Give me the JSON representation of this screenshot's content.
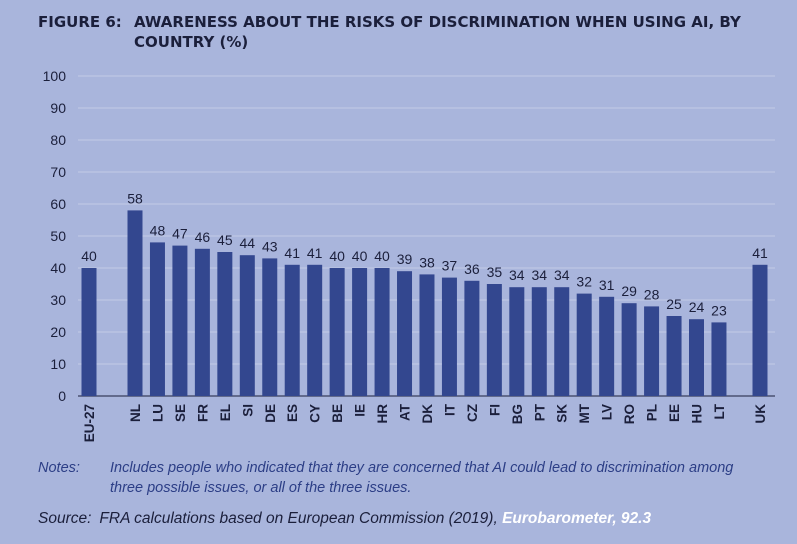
{
  "figure": {
    "label": "FIGURE 6:",
    "title": "AWARENESS ABOUT THE RISKS OF DISCRIMINATION WHEN USING AI, BY COUNTRY (%)"
  },
  "colors": {
    "background": "#a9b5dc",
    "bar": "#33478f",
    "gridline": "#c4cce6",
    "text": "#1b1f3b",
    "notes": "#2c3e86",
    "highlight": "#ffffff"
  },
  "chart_data": {
    "type": "bar",
    "title": "AWARENESS ABOUT THE RISKS OF DISCRIMINATION WHEN USING AI, BY COUNTRY (%)",
    "categories": [
      "EU-27",
      "NL",
      "LU",
      "SE",
      "FR",
      "EL",
      "SI",
      "DE",
      "ES",
      "CY",
      "BE",
      "IE",
      "HR",
      "AT",
      "DK",
      "IT",
      "CZ",
      "FI",
      "BG",
      "PT",
      "SK",
      "MT",
      "LV",
      "RO",
      "PL",
      "EE",
      "HU",
      "LT",
      "UK"
    ],
    "values": [
      40,
      58,
      48,
      47,
      46,
      45,
      44,
      43,
      41,
      41,
      40,
      40,
      40,
      39,
      38,
      37,
      36,
      35,
      34,
      34,
      34,
      32,
      31,
      29,
      28,
      25,
      24,
      23,
      41
    ],
    "ylim": [
      0,
      100
    ],
    "yticks": [
      0,
      10,
      20,
      30,
      40,
      50,
      60,
      70,
      80,
      90,
      100
    ],
    "grid": true,
    "data_labels": true,
    "legend": "none"
  },
  "notes": {
    "label": "Notes:",
    "text": "Includes people who indicated that they are concerned that AI could lead to discrimination among three possible issues, or all of the three issues."
  },
  "source": {
    "label": "Source:",
    "text": "FRA calculations based on European Commission (2019), ",
    "highlight": "Eurobarometer, 92.3"
  }
}
